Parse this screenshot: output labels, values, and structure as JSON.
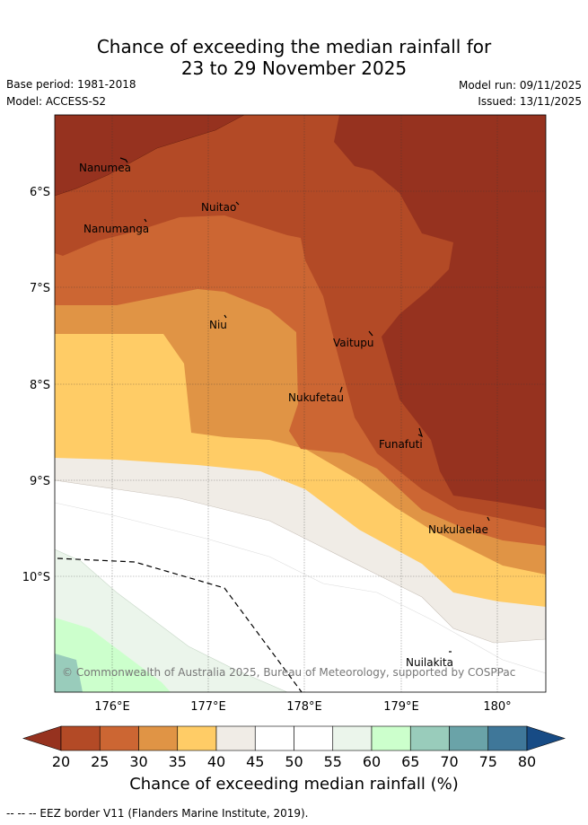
{
  "title_line1": "Chance of exceeding the median rainfall for",
  "title_line2": "23 to 29 November 2025",
  "base_period": "Base period: 1981-2018",
  "model": "Model: ACCESS-S2",
  "model_run": "Model run: 09/11/2025",
  "issued": "Issued: 13/11/2025",
  "copyright": "© Commonwealth of Australia 2025, Bureau of Meteorology, supported by COSPPac",
  "lat_labels": [
    "6°S",
    "7°S",
    "8°S",
    "9°S",
    "10°S"
  ],
  "lon_labels": [
    "176°E",
    "177°E",
    "178°E",
    "179°E",
    "180°"
  ],
  "places": [
    "Nanumea",
    "Nuitao",
    "Nanumanga",
    "Niu",
    "Vaitupu",
    "Nukufetau",
    "Funafuti",
    "Nukulaelae",
    "Nuilakita"
  ],
  "colorbar": {
    "ticks": [
      "20",
      "25",
      "30",
      "35",
      "40",
      "45",
      "50",
      "55",
      "60",
      "65",
      "70",
      "75",
      "80"
    ],
    "colors": [
      "#96321f",
      "#b34a26",
      "#cc6633",
      "#e09445",
      "#ffcc66",
      "#f0ece6",
      "#ffffff",
      "#ffffff",
      "#ebf5eb",
      "#ccffcc",
      "#99ccbb",
      "#6aa3a8",
      "#3f7799",
      "#174b85"
    ],
    "title": "Chance of exceeding median rainfall (%)"
  },
  "eez_legend": "-- -- -- EEZ border V11 (Flanders Marine Institute, 2019)."
}
